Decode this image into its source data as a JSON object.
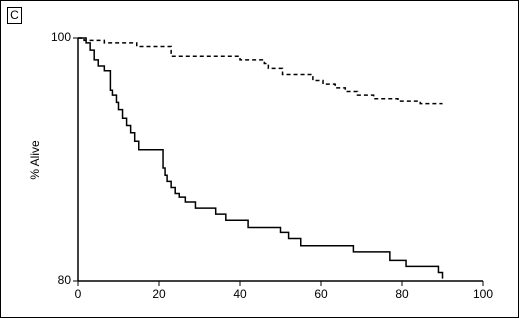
{
  "chart_data": {
    "type": "step",
    "panel_label": "C",
    "ylabel": "% Alive",
    "xlim": [
      0,
      100
    ],
    "xticks": [
      0,
      20,
      40,
      60,
      80,
      100
    ],
    "ylim": [
      80,
      100
    ],
    "yticks": [
      80,
      100
    ],
    "series": [
      {
        "color": "#000000",
        "line_style": "solid",
        "x": [
          0,
          2,
          3,
          4,
          5,
          6.5,
          8,
          8.5,
          9.5,
          10,
          11,
          12,
          13,
          14,
          15,
          21,
          21.5,
          22,
          23,
          24,
          25,
          26.5,
          29,
          34,
          36.5,
          42,
          50,
          52,
          55,
          68,
          77,
          81,
          89,
          90
        ],
        "values": [
          100,
          99.6,
          99.0,
          98.2,
          97.7,
          97.3,
          95.7,
          95.3,
          94.7,
          94.1,
          93.4,
          92.8,
          92.2,
          91.5,
          90.8,
          89.3,
          88.7,
          88.2,
          87.7,
          87.2,
          86.9,
          86.5,
          86.0,
          85.5,
          85.0,
          84.4,
          84.0,
          83.5,
          82.9,
          82.4,
          81.7,
          81.2,
          80.7,
          80.2
        ]
      },
      {
        "color": "#000000",
        "line_style": "dashed",
        "x": [
          0,
          1.5,
          6.5,
          14.5,
          23,
          40,
          46,
          47,
          50.5,
          58,
          60.5,
          63.5,
          66,
          69,
          73,
          79,
          84.5,
          90
        ],
        "values": [
          100,
          99.8,
          99.6,
          99.3,
          98.5,
          98.2,
          97.9,
          97.5,
          97.0,
          96.5,
          96.2,
          95.9,
          95.6,
          95.3,
          95.0,
          94.8,
          94.6,
          94.6
        ]
      }
    ]
  }
}
